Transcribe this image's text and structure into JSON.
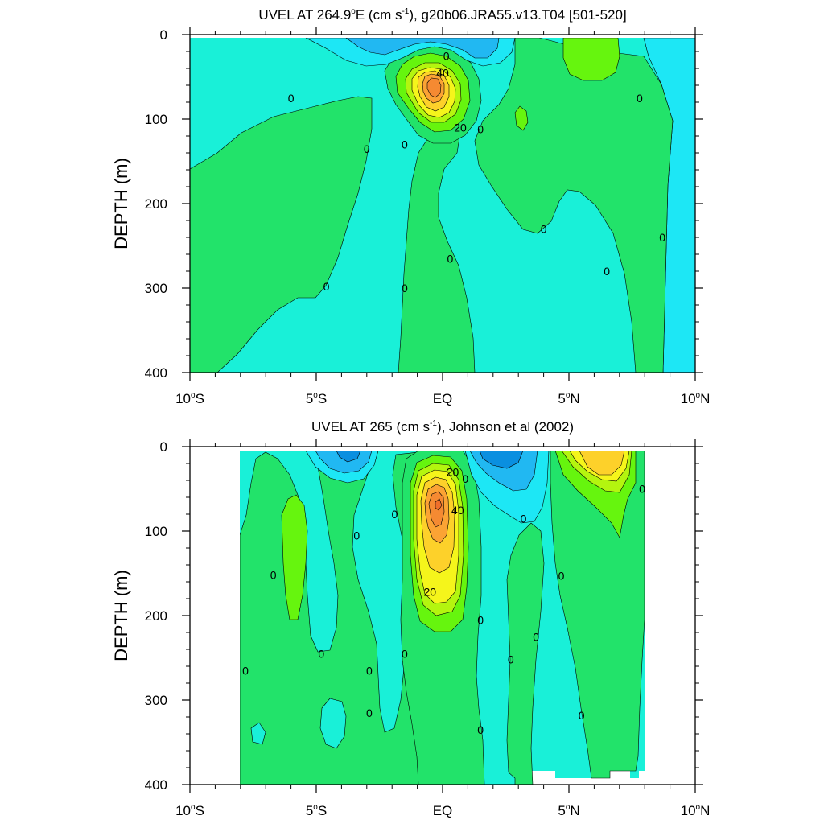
{
  "colors": {
    "c_neg30": "#0a8fe0",
    "c_neg20": "#21b8f2",
    "c_neg10": "#1de7f5",
    "c_zero_neg": "#19f0d8",
    "c_zero_pos": "#22e36a",
    "c_10": "#66f50e",
    "c_20": "#b4f50f",
    "c_30": "#f5f51b",
    "c_40": "#fdd12a",
    "c_50": "#fba334",
    "c_60": "#f58a32",
    "c_70": "#ef6e2a",
    "contour_line": "#000000"
  },
  "chart_data": [
    {
      "type": "contour",
      "title": "UVEL AT 264.9°E (cm s⁻¹), g20b06.JRA55.v13.T04 [501-520]",
      "title_parts": {
        "pre": "UVEL AT 264.9",
        "deg": "o",
        "mid": "E (cm s",
        "sup": "-1",
        "post": "), g20b06.JRA55.v13.T04 [501-520]"
      },
      "xlabel": "",
      "ylabel": "DEPTH (m)",
      "xlim": [
        -10,
        10
      ],
      "ylim": [
        400,
        0
      ],
      "x_ticks": [
        {
          "value": -10,
          "num": "10",
          "deg": "o",
          "hemi": "S"
        },
        {
          "value": -5,
          "num": "5",
          "deg": "o",
          "hemi": "S"
        },
        {
          "value": 0,
          "num": "EQ",
          "deg": "",
          "hemi": ""
        },
        {
          "value": 5,
          "num": "5",
          "deg": "o",
          "hemi": "N"
        },
        {
          "value": 10,
          "num": "10",
          "deg": "o",
          "hemi": "N"
        }
      ],
      "y_ticks": [
        0,
        100,
        200,
        300,
        400
      ],
      "contour_interval": 10,
      "contour_labels": [
        {
          "text": "0",
          "x": -6.0,
          "y": 75
        },
        {
          "text": "0",
          "x": -3.0,
          "y": 135
        },
        {
          "text": "0",
          "x": -1.5,
          "y": 130
        },
        {
          "text": "0",
          "x": 0.15,
          "y": 25
        },
        {
          "text": "40",
          "x": 0.0,
          "y": 45
        },
        {
          "text": "20",
          "x": 0.7,
          "y": 110
        },
        {
          "text": "0",
          "x": 1.5,
          "y": 112
        },
        {
          "text": "0",
          "x": 4.0,
          "y": 230
        },
        {
          "text": "0",
          "x": 7.8,
          "y": 75
        },
        {
          "text": "0",
          "x": 8.7,
          "y": 240
        },
        {
          "text": "0",
          "x": 0.3,
          "y": 265
        },
        {
          "text": "0",
          "x": -4.6,
          "y": 298
        },
        {
          "text": "0",
          "x": -1.5,
          "y": 300
        },
        {
          "text": "0",
          "x": 6.5,
          "y": 280
        }
      ],
      "features": [
        {
          "name": "equatorial undercurrent core",
          "x": 0.0,
          "depth": 70,
          "max_value": 60
        },
        {
          "name": "surface westward flow",
          "x": 1.5,
          "depth": 10,
          "min_value": -20
        },
        {
          "name": "north eastward surface flow",
          "x": 5.2,
          "depth": 30,
          "max_value": 10
        }
      ]
    },
    {
      "type": "contour",
      "title": "UVEL AT 265 (cm s⁻¹), Johnson et al (2002)",
      "title_parts": {
        "pre": "UVEL AT 265 (cm s",
        "deg": "",
        "mid": "",
        "sup": "-1",
        "post": "), Johnson et al (2002)"
      },
      "xlabel": "",
      "ylabel": "DEPTH (m)",
      "xlim": [
        -10,
        10
      ],
      "ylim": [
        400,
        0
      ],
      "x_ticks": [
        {
          "value": -10,
          "num": "10",
          "deg": "o",
          "hemi": "S"
        },
        {
          "value": -5,
          "num": "5",
          "deg": "o",
          "hemi": "S"
        },
        {
          "value": 0,
          "num": "EQ",
          "deg": "",
          "hemi": ""
        },
        {
          "value": 5,
          "num": "5",
          "deg": "o",
          "hemi": "N"
        },
        {
          "value": 10,
          "num": "10",
          "deg": "o",
          "hemi": "N"
        }
      ],
      "y_ticks": [
        0,
        100,
        200,
        300,
        400
      ],
      "contour_interval": 10,
      "data_extent_x": [
        -8,
        8
      ],
      "contour_labels": [
        {
          "text": "0",
          "x": -7.8,
          "y": 265
        },
        {
          "text": "0",
          "x": -6.7,
          "y": 152
        },
        {
          "text": "0",
          "x": -4.8,
          "y": 245
        },
        {
          "text": "0",
          "x": -3.4,
          "y": 105
        },
        {
          "text": "0",
          "x": -2.9,
          "y": 265
        },
        {
          "text": "0",
          "x": -2.9,
          "y": 315
        },
        {
          "text": "0",
          "x": -1.9,
          "y": 80
        },
        {
          "text": "0",
          "x": -1.5,
          "y": 245
        },
        {
          "text": "20",
          "x": 0.4,
          "y": 30
        },
        {
          "text": "0",
          "x": 0.9,
          "y": 38
        },
        {
          "text": "40",
          "x": 0.6,
          "y": 75
        },
        {
          "text": "20",
          "x": -0.5,
          "y": 172
        },
        {
          "text": "0",
          "x": 1.5,
          "y": 205
        },
        {
          "text": "0",
          "x": 1.5,
          "y": 335
        },
        {
          "text": "0",
          "x": 2.7,
          "y": 252
        },
        {
          "text": "0",
          "x": 3.2,
          "y": 85
        },
        {
          "text": "0",
          "x": 3.7,
          "y": 225
        },
        {
          "text": "0",
          "x": 4.7,
          "y": 153
        },
        {
          "text": "0",
          "x": 5.5,
          "y": 318
        },
        {
          "text": "0",
          "x": 7.9,
          "y": 50
        }
      ],
      "features": [
        {
          "name": "equatorial undercurrent core",
          "x": 0.0,
          "depth": 65,
          "max_value": 70
        },
        {
          "name": "surface westward flow",
          "x": 2.0,
          "depth": 10,
          "min_value": -30
        },
        {
          "name": "north eastward surface flow",
          "x": 6.7,
          "depth": 15,
          "max_value": 40
        }
      ]
    }
  ]
}
